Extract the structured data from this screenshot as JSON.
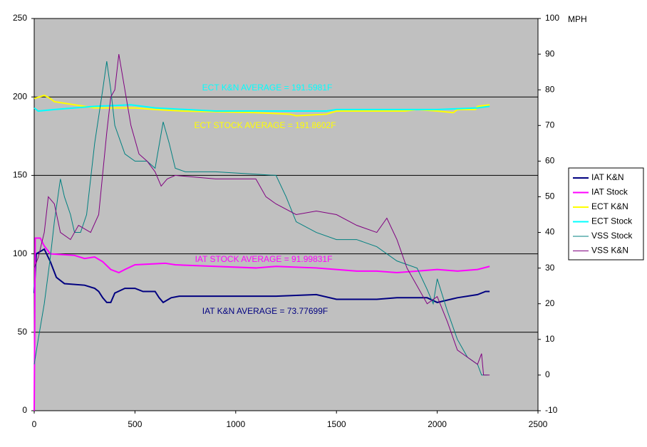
{
  "chart_data": {
    "type": "line",
    "y2label": "MPH",
    "xlim": [
      0,
      2500
    ],
    "xticks": [
      0,
      500,
      1000,
      1500,
      2000,
      2500
    ],
    "ylim": [
      0,
      250
    ],
    "yticks": [
      0,
      50,
      100,
      150,
      200,
      250
    ],
    "y2lim": [
      -10,
      100
    ],
    "y2ticks": [
      -10,
      0,
      10,
      20,
      30,
      40,
      50,
      60,
      70,
      80,
      90,
      100
    ],
    "grid": true,
    "background": "#c0c0c0",
    "legend": "right",
    "annotations": [
      {
        "text": "ECT K&N AVERAGE = 191.5981F",
        "color": "#00ffff"
      },
      {
        "text": "ECT STOCK AVERAGE = 191.8602F",
        "color": "#ffff00"
      },
      {
        "text": "IAT STOCK AVERAGE = 91.99831F",
        "color": "#ff00ff"
      },
      {
        "text": "IAT K&N AVERAGE = 73.77699F",
        "color": "#000080"
      }
    ],
    "series": [
      {
        "name": "IAT K&N",
        "color": "#000080",
        "width": 2,
        "x": [
          0,
          10,
          50,
          80,
          110,
          150,
          250,
          300,
          320,
          340,
          360,
          380,
          400,
          450,
          500,
          540,
          600,
          620,
          640,
          680,
          720,
          1000,
          1200,
          1400,
          1500,
          1700,
          1800,
          1950,
          2000,
          2100,
          2200,
          2240,
          2260
        ],
        "values": [
          75,
          100,
          103,
          95,
          85,
          81,
          80,
          78,
          76,
          72,
          69,
          69,
          75,
          78,
          78,
          76,
          76,
          72,
          69,
          72,
          73,
          73,
          73,
          74,
          71,
          71,
          72,
          72,
          69,
          72,
          74,
          76,
          76
        ]
      },
      {
        "name": "IAT Stock",
        "color": "#ff00ff",
        "width": 2,
        "x": [
          0,
          5,
          30,
          50,
          80,
          200,
          250,
          300,
          340,
          380,
          420,
          450,
          500,
          650,
          700,
          900,
          1100,
          1200,
          1400,
          1500,
          1600,
          1700,
          1800,
          1900,
          2000,
          2100,
          2200,
          2260
        ],
        "values": [
          0,
          110,
          110,
          105,
          100,
          99,
          97,
          98,
          95,
          90,
          88,
          90,
          93,
          94,
          93,
          92,
          91,
          92,
          91,
          90,
          89,
          89,
          88,
          89,
          90,
          89,
          90,
          92
        ]
      },
      {
        "name": "ECT K&N",
        "color": "#ffff00",
        "width": 2,
        "x": [
          0,
          50,
          80,
          100,
          150,
          200,
          250,
          300,
          500,
          600,
          740,
          1100,
          1270,
          1300,
          1450,
          1500,
          1840,
          1900,
          2000,
          2080,
          2100,
          2190,
          2200,
          2260
        ],
        "values": [
          199,
          201,
          199,
          197,
          196,
          195,
          194,
          193,
          193,
          192,
          191,
          190,
          189,
          188,
          189,
          191,
          191,
          192,
          191,
          190,
          192,
          192,
          194,
          195
        ]
      },
      {
        "name": "ECT Stock",
        "color": "#00ffff",
        "width": 2,
        "x": [
          0,
          20,
          100,
          200,
          300,
          480,
          600,
          900,
          1450,
          1500,
          2000,
          2200,
          2260
        ],
        "values": [
          193,
          191,
          192,
          193,
          194,
          195,
          193,
          191,
          191,
          192,
          192,
          193,
          194
        ]
      },
      {
        "name": "VSS Stock",
        "color": "#008080",
        "width": 1,
        "axis": "y2",
        "x": [
          0,
          20,
          50,
          80,
          100,
          130,
          150,
          180,
          200,
          230,
          260,
          300,
          340,
          360,
          380,
          400,
          450,
          500,
          560,
          600,
          640,
          670,
          700,
          750,
          900,
          1200,
          1250,
          1300,
          1400,
          1500,
          1600,
          1700,
          1800,
          1900,
          1950,
          1980,
          2000,
          2050,
          2100,
          2150,
          2200,
          2220,
          2250
        ],
        "values": [
          3,
          10,
          20,
          33,
          43,
          55,
          50,
          45,
          40,
          40,
          45,
          65,
          80,
          88,
          80,
          70,
          62,
          60,
          60,
          58,
          71,
          65,
          58,
          57,
          57,
          56,
          50,
          43,
          40,
          38,
          38,
          36,
          32,
          30,
          24,
          20,
          27,
          18,
          10,
          5,
          3,
          0,
          0
        ]
      },
      {
        "name": "VSS K&N",
        "color": "#800080",
        "width": 1,
        "axis": "y2",
        "x": [
          0,
          20,
          50,
          70,
          100,
          130,
          180,
          220,
          280,
          320,
          360,
          380,
          400,
          420,
          450,
          480,
          520,
          560,
          600,
          630,
          660,
          700,
          900,
          1100,
          1150,
          1200,
          1300,
          1400,
          1500,
          1600,
          1700,
          1750,
          1800,
          1850,
          1900,
          1950,
          2000,
          2050,
          2100,
          2150,
          2200,
          2220,
          2230,
          2260
        ],
        "values": [
          30,
          33,
          40,
          50,
          48,
          40,
          38,
          42,
          40,
          45,
          68,
          78,
          80,
          90,
          80,
          70,
          62,
          60,
          57,
          53,
          55,
          56,
          55,
          55,
          50,
          48,
          45,
          46,
          45,
          42,
          40,
          44,
          38,
          30,
          25,
          20,
          22,
          15,
          7,
          5,
          3,
          6,
          0,
          0
        ]
      }
    ]
  }
}
